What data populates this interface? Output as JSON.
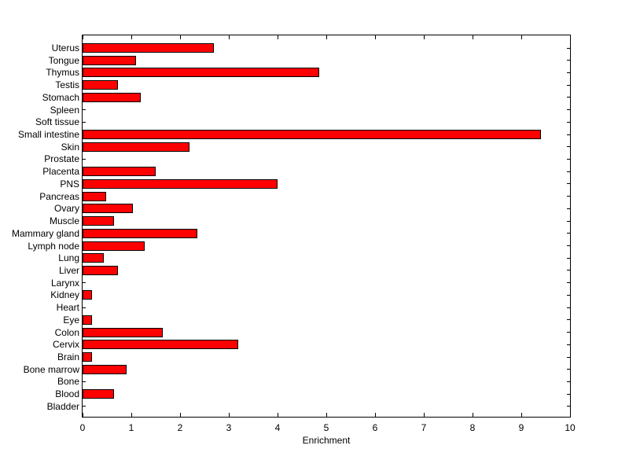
{
  "figure": {
    "background_color": "#FFFFFF"
  },
  "chart_data": {
    "type": "bar",
    "orientation": "horizontal",
    "title": "",
    "xlabel": "Enrichment",
    "ylabel": "",
    "categories": [
      "Uterus",
      "Tongue",
      "Thymus",
      "Testis",
      "Stomach",
      "Spleen",
      "Soft tissue",
      "Small intestine",
      "Skin",
      "Prostate",
      "Placenta",
      "PNS",
      "Pancreas",
      "Ovary",
      "Muscle",
      "Mammary gland",
      "Lymph node",
      "Lung",
      "Liver",
      "Larynx",
      "Kidney",
      "Heart",
      "Eye",
      "Colon",
      "Cervix",
      "Brain",
      "Bone marrow",
      "Bone",
      "Blood",
      "Bladder"
    ],
    "values": [
      2.7,
      1.1,
      4.85,
      0.72,
      1.19,
      0,
      0,
      9.4,
      2.2,
      0,
      1.5,
      4.0,
      0.48,
      1.03,
      0.65,
      2.35,
      1.28,
      0.44,
      0.73,
      0,
      0.2,
      0,
      0.19,
      1.65,
      3.2,
      0.19,
      0.9,
      0,
      0.65,
      0
    ],
    "xlim": [
      0,
      10
    ],
    "xticks": [
      0,
      1,
      2,
      3,
      4,
      5,
      6,
      7,
      8,
      9,
      10
    ],
    "grid": false,
    "legend": null,
    "bar_color": "#FF0000",
    "bar_edge_color": "#000000",
    "axis_color": "#000000",
    "tick_direction": "in",
    "box": true
  }
}
